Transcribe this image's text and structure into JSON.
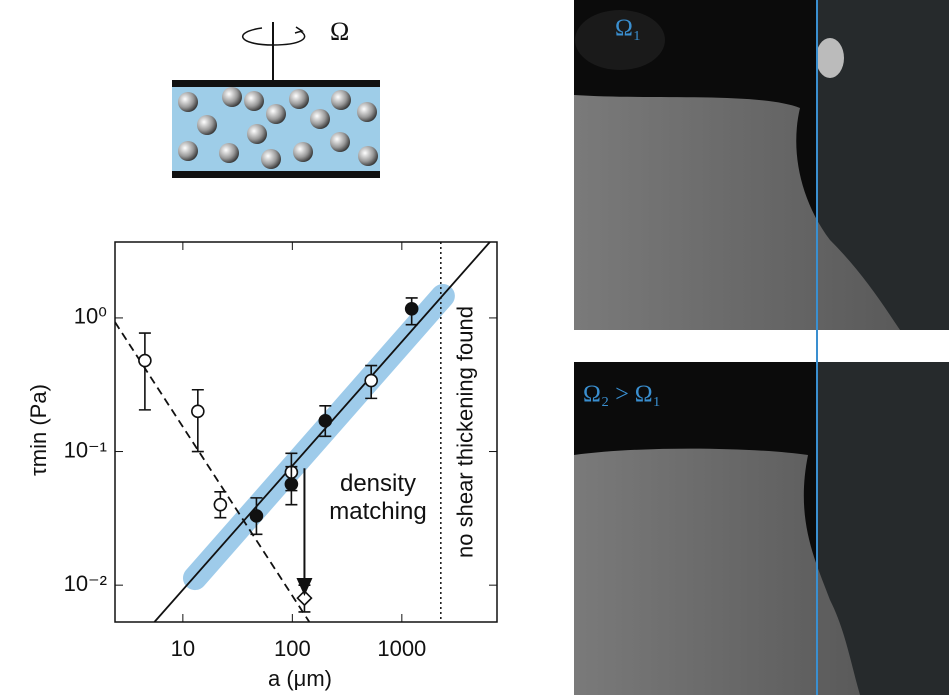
{
  "chart_data": {
    "type": "scatter",
    "xlabel": "a (μm)",
    "ylabel": "τmin (Pa)",
    "log_x": true,
    "log_y": true,
    "xlim": [
      2.4,
      7400
    ],
    "ylim": [
      0.0053,
      3.7
    ],
    "xticks": [
      10,
      100,
      1000
    ],
    "yticks": [
      {
        "value": 1,
        "label": "10⁰"
      },
      {
        "value": 0.1,
        "label": "10⁻¹"
      },
      {
        "value": 0.01,
        "label": "10⁻²"
      }
    ],
    "series": [
      {
        "marker": "open-circle",
        "color": "#111111",
        "x": [
          4.5,
          13.7,
          22,
          98,
          525
        ],
        "values": [
          0.48,
          0.2,
          0.04,
          0.07,
          0.34
        ],
        "err_low": [
          0.205,
          0.1,
          0.032,
          0.051,
          0.25
        ],
        "err_high": [
          0.77,
          0.29,
          0.05,
          0.097,
          0.44
        ]
      },
      {
        "marker": "filled-circle",
        "color": "#111111",
        "x": [
          47,
          98,
          200,
          1230
        ],
        "values": [
          0.033,
          0.057,
          0.17,
          1.17
        ],
        "err_low": [
          0.024,
          0.04,
          0.13,
          0.89
        ],
        "err_high": [
          0.045,
          0.077,
          0.22,
          1.41
        ]
      },
      {
        "marker": "open-diamond",
        "color": "#111111",
        "x": [
          129
        ],
        "values": [
          0.008
        ],
        "err_low": [
          0.0063
        ],
        "err_high": [
          0.01
        ]
      }
    ],
    "lines": [
      {
        "style": "solid",
        "color": "#111111",
        "x": [
          5.5,
          6370
        ],
        "values": [
          0.0053,
          3.7
        ]
      },
      {
        "style": "dashed",
        "color": "#111111",
        "x": [
          2.4,
          143
        ],
        "values": [
          0.93,
          0.0053
        ]
      },
      {
        "style": "band",
        "color": "#9ecbea",
        "x": [
          12.9,
          2370
        ],
        "values": [
          0.0113,
          1.46
        ]
      }
    ],
    "vline": {
      "x": 2270,
      "label": "no shear thickening found"
    },
    "annotation": {
      "text": "density matching",
      "x": 129,
      "from": 0.075,
      "to": 0.0083
    },
    "schematic_label": "Ω",
    "photo_labels": [
      "Ω₁",
      "Ω₂ > Ω₁"
    ]
  }
}
